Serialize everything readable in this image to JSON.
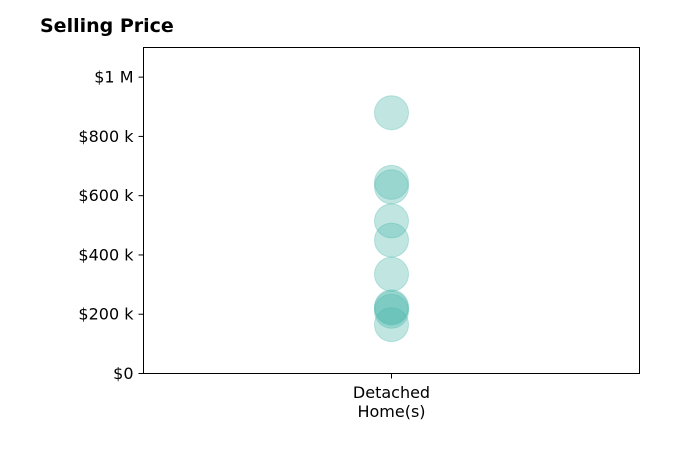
{
  "chart_data": {
    "type": "scatter",
    "title": "Selling Price",
    "xlabel": "",
    "ylabel": "",
    "categories": [
      [
        "Detached",
        "Home(s)"
      ]
    ],
    "series": [
      {
        "category_index": 0,
        "values": [
          880000,
          645000,
          630000,
          515000,
          450000,
          335000,
          225000,
          220000,
          210000,
          165000
        ]
      }
    ],
    "ylim": [
      0,
      1100000
    ],
    "yticks": [
      {
        "value": 0,
        "label": "$0"
      },
      {
        "value": 200000,
        "label": "$200 k"
      },
      {
        "value": 400000,
        "label": "$400 k"
      },
      {
        "value": 600000,
        "label": "$600 k"
      },
      {
        "value": 800000,
        "label": "$800 k"
      },
      {
        "value": 1000000,
        "label": "$1 M"
      }
    ],
    "grid": false,
    "legend": "none",
    "marker_color": "#4db6ac",
    "marker_alpha": 0.35
  }
}
